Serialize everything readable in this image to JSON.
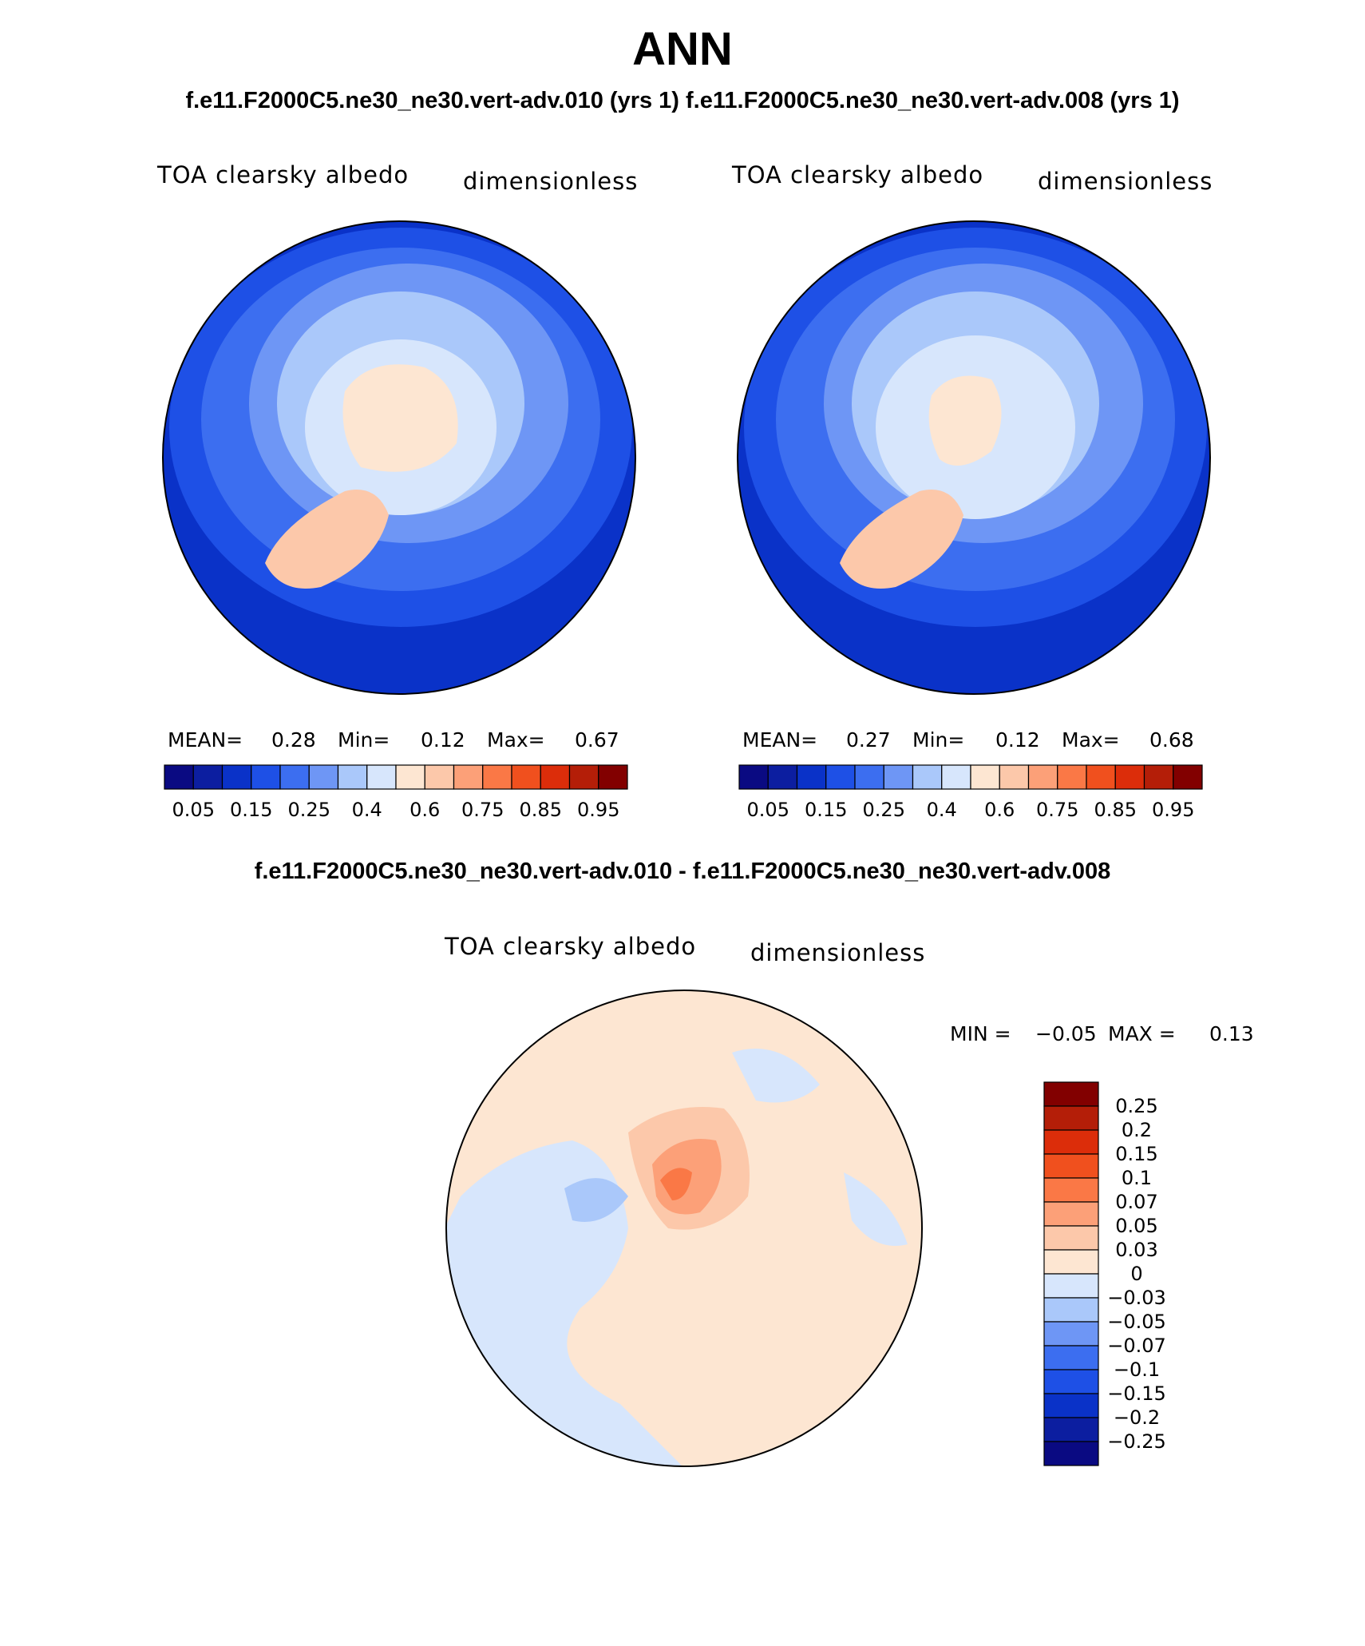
{
  "title": "ANN",
  "subtitle": "f.e11.F2000C5.ne30_ne30.vert-adv.010 (yrs 1) f.e11.F2000C5.ne30_ne30.vert-adv.008 (yrs 1)",
  "diff_title": "f.e11.F2000C5.ne30_ne30.vert-adv.010 - f.e11.F2000C5.ne30_ne30.vert-adv.008",
  "panels": [
    {
      "variable": "TOA clearsky albedo",
      "units": "dimensionless",
      "stats": {
        "mean_label": "MEAN=",
        "mean": "0.28",
        "min_label": "Min=",
        "min": "0.12",
        "max_label": "Max=",
        "max": "0.67"
      }
    },
    {
      "variable": "TOA clearsky albedo",
      "units": "dimensionless",
      "stats": {
        "mean_label": "MEAN=",
        "mean": "0.27",
        "min_label": "Min=",
        "min": "0.12",
        "max_label": "Max=",
        "max": "0.68"
      }
    },
    {
      "variable": "TOA clearsky albedo",
      "units": "dimensionless",
      "stats": {
        "min_label": "MIN =",
        "min": "−0.05",
        "max_label": "MAX =",
        "max": "0.13"
      }
    }
  ],
  "colorbar_main": {
    "colors": [
      "#0a0a82",
      "#0c1ea0",
      "#0a32c8",
      "#1e50e6",
      "#3c6ef0",
      "#6e96f5",
      "#aac8fa",
      "#d7e6fc",
      "#fde6d2",
      "#fcc8aa",
      "#fca078",
      "#fa7846",
      "#f0501e",
      "#dc2d0a",
      "#b41e08",
      "#820000"
    ],
    "tick_labels": [
      "0.05",
      "0.15",
      "0.25",
      "0.4",
      "0.6",
      "0.75",
      "0.85",
      "0.95"
    ]
  },
  "colorbar_diff": {
    "colors": [
      "#820000",
      "#b41e08",
      "#dc2d0a",
      "#f0501e",
      "#fa7846",
      "#fca078",
      "#fcc8aa",
      "#fde6d2",
      "#d7e6fc",
      "#aac8fa",
      "#6e96f5",
      "#3c6ef0",
      "#1e50e6",
      "#0a32c8",
      "#0c1ea0",
      "#0a0a82"
    ],
    "tick_labels": [
      "0.25",
      "0.2",
      "0.15",
      "0.1",
      "0.07",
      "0.05",
      "0.03",
      "0",
      "−0.03",
      "−0.05",
      "−0.07",
      "−0.1",
      "−0.15",
      "−0.2",
      "−0.25"
    ]
  }
}
